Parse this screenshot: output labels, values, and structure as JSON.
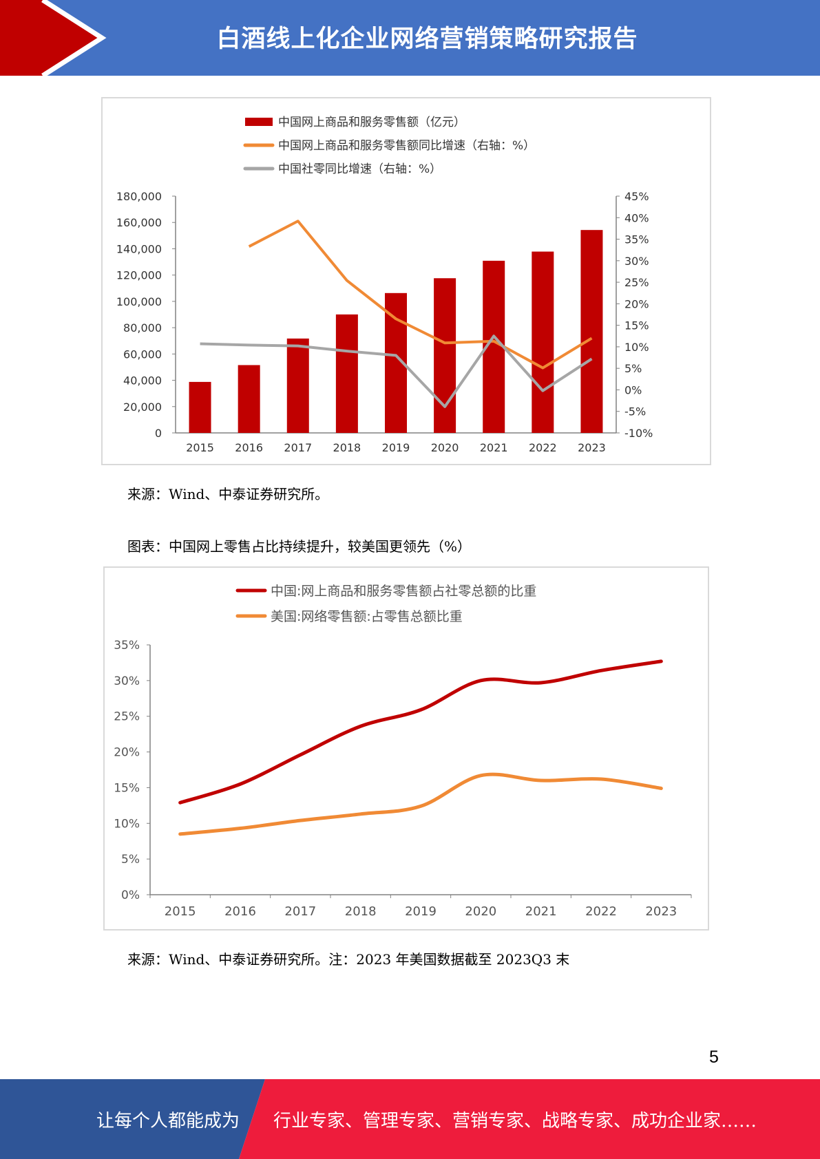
{
  "header": {
    "title": "白酒线上化企业网络营销策略研究报告",
    "colors": {
      "band": "#4472c4",
      "arrow": "#c00000"
    }
  },
  "chart_data": [
    {
      "type": "bar",
      "categories": [
        "2015",
        "2016",
        "2017",
        "2018",
        "2019",
        "2020",
        "2021",
        "2022",
        "2023"
      ],
      "series": [
        {
          "name": "中国网上商品和服务零售额（亿元）",
          "type": "bar",
          "axis": "left",
          "color": "#c00000",
          "values": [
            38773,
            51556,
            71751,
            90065,
            106324,
            117601,
            130884,
            137853,
            154264
          ]
        },
        {
          "name": "中国网上商品和服务零售额同比增速（右轴：%）",
          "type": "line",
          "axis": "right",
          "color": "#f08a35",
          "values": [
            null,
            33.3,
            39.2,
            25.4,
            16.5,
            10.9,
            11.3,
            5.1,
            12.0
          ]
        },
        {
          "name": "中国社零同比增速（右轴：%）",
          "type": "line",
          "axis": "right",
          "color": "#a6a6a6",
          "values": [
            10.7,
            10.4,
            10.2,
            9.0,
            8.0,
            -3.9,
            12.5,
            -0.2,
            7.2
          ]
        }
      ],
      "yticks_left": [
        "180,000",
        "160,000",
        "140,000",
        "120,000",
        "100,000",
        "80,000",
        "60,000",
        "40,000",
        "20,000",
        "0"
      ],
      "yticks_right": [
        "45%",
        "40%",
        "35%",
        "30%",
        "25%",
        "20%",
        "15%",
        "10%",
        "5%",
        "0%",
        "-5%",
        "-10%"
      ],
      "ylim_left": [
        0,
        180000
      ],
      "ylim_right": [
        -10,
        45
      ],
      "legend_position": "top-left",
      "grid": false
    },
    {
      "type": "line",
      "categories": [
        "2015",
        "2016",
        "2017",
        "2018",
        "2019",
        "2020",
        "2021",
        "2022",
        "2023"
      ],
      "series": [
        {
          "name": "中国:网上商品和服务零售额占社零总额的比重",
          "color": "#c00000",
          "values": [
            12.9,
            15.5,
            19.6,
            23.6,
            25.9,
            30.0,
            29.7,
            31.4,
            32.7
          ]
        },
        {
          "name": "美国:网络零售额:占零售总额比重",
          "color": "#f08a35",
          "values": [
            8.5,
            9.3,
            10.4,
            11.3,
            12.4,
            16.7,
            16.0,
            16.2,
            14.9
          ]
        }
      ],
      "yticks": [
        "35%",
        "30%",
        "25%",
        "20%",
        "15%",
        "10%",
        "5%",
        "0%"
      ],
      "ylim": [
        0,
        35
      ],
      "legend_position": "top-center",
      "grid": false
    }
  ],
  "captions": {
    "source1": "来源：Wind、中泰证券研究所。",
    "chart2_title": "图表：中国网上零售占比持续提升，较美国更领先（%）",
    "source2": "来源：Wind、中泰证券研究所。注：2023 年美国数据截至 2023Q3 末"
  },
  "page_number": "5",
  "footer": {
    "left_text": "让每个人都能成为",
    "right_text": "行业专家、管理专家、营销专家、战略专家、成功企业家……",
    "colors": {
      "left": "#2f5597",
      "right": "#ee1c3c"
    }
  }
}
